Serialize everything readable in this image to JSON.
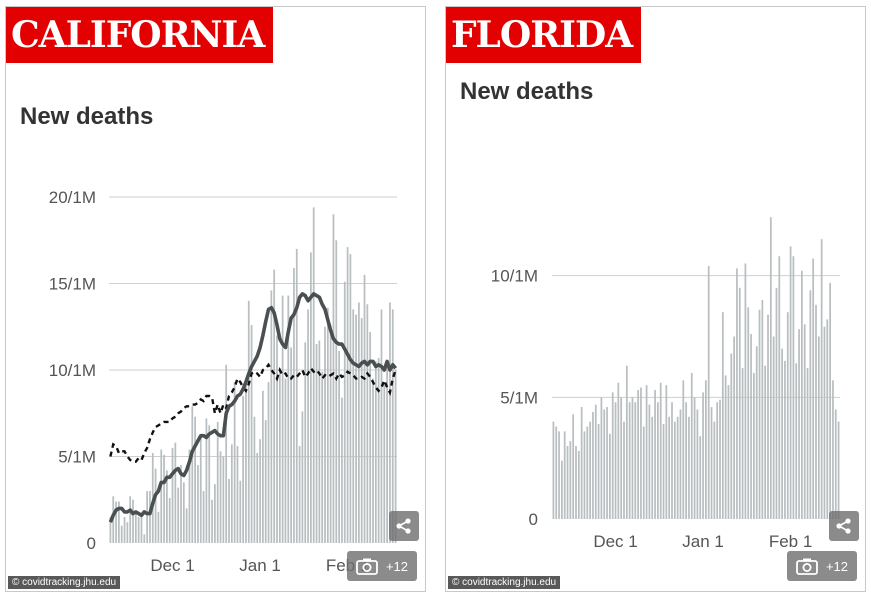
{
  "panels": [
    {
      "state_label": "CALIFORNIA",
      "title": "New deaths",
      "credit": "© covidtracking.jhu.edu",
      "gallery_count": "+12",
      "icons": {
        "share": "share-icon",
        "gallery": "camera-icon"
      },
      "chart_data": {
        "type": "bar",
        "ylim": [
          0,
          20
        ],
        "yticks": [
          {
            "v": 0,
            "label": "0"
          },
          {
            "v": 5,
            "label": "5/1M"
          },
          {
            "v": 10,
            "label": "10/1M"
          },
          {
            "v": 15,
            "label": "15/1M"
          },
          {
            "v": 20,
            "label": "20/1M"
          }
        ],
        "xticks": [
          {
            "day": 22,
            "label": "Dec 1"
          },
          {
            "day": 53,
            "label": "Jan 1"
          },
          {
            "day": 84,
            "label": "Feb 1"
          }
        ],
        "days": 102,
        "grid": true,
        "colors": {
          "bars": "#b9bfc1",
          "avg": "#4a4f52",
          "dashed": "#111111"
        },
        "bars": [
          1.5,
          2.7,
          2.4,
          2.4,
          1.0,
          1.5,
          1.2,
          2.7,
          2.5,
          1.8,
          1.5,
          1.5,
          0.5,
          3.0,
          3.0,
          5.2,
          4.3,
          1.8,
          5.4,
          5.1,
          4.2,
          2.6,
          5.5,
          5.8,
          3.2,
          4.5,
          3.5,
          2.0,
          5.4,
          7.9,
          7.3,
          4.5,
          6.1,
          3.0,
          7.2,
          6.8,
          2.5,
          3.4,
          7.0,
          5.3,
          5.0,
          10.3,
          3.7,
          5.7,
          9.3,
          5.6,
          3.6,
          8.5,
          9.5,
          14.0,
          12.6,
          7.3,
          5.2,
          6.0,
          8.8,
          7.1,
          9.3,
          14.6,
          15.8,
          12.0,
          10.1,
          14.3,
          9.5,
          14.3,
          11.3,
          15.9,
          17.0,
          5.6,
          7.6,
          11.6,
          13.5,
          16.8,
          19.4,
          11.5,
          11.7,
          9.9,
          12.5,
          13.6,
          12.6,
          19.0,
          17.5,
          11.1,
          8.4,
          15.1,
          17.1,
          16.7,
          13.5,
          13.2,
          13.9,
          13.0,
          15.5,
          13.8,
          12.2,
          9.5,
          10.5,
          10.7,
          13.5,
          9.3,
          10.2,
          13.9,
          13.5,
          10.0
        ],
        "avg": [
          1.2,
          1.6,
          1.9,
          2.0,
          2.0,
          1.8,
          1.8,
          1.9,
          1.7,
          1.8,
          1.7,
          1.6,
          1.8,
          1.7,
          1.7,
          2.3,
          2.8,
          3.0,
          3.5,
          3.5,
          3.8,
          3.8,
          4.0,
          4.2,
          4.3,
          4.0,
          3.9,
          4.2,
          4.7,
          5.3,
          5.6,
          5.9,
          6.2,
          6.2,
          6.1,
          6.3,
          6.4,
          6.5,
          6.3,
          6.2,
          6.2,
          7.5,
          7.9,
          8.0,
          8.2,
          8.5,
          8.6,
          8.9,
          9.3,
          9.8,
          10.2,
          10.5,
          10.8,
          11.3,
          12.0,
          12.8,
          13.5,
          13.6,
          13.3,
          12.6,
          11.8,
          11.5,
          11.3,
          12.2,
          13.0,
          13.2,
          13.6,
          14.2,
          14.4,
          14.3,
          14.0,
          14.2,
          14.4,
          14.3,
          14.2,
          13.8,
          13.5,
          12.9,
          12.3,
          11.8,
          11.6,
          11.5,
          11.5,
          11.2,
          10.9,
          10.6,
          10.4,
          10.3,
          10.2,
          10.4,
          10.5,
          10.3,
          10.5,
          10.5,
          10.2,
          10.3,
          10.2,
          10.0,
          10.5,
          10.0,
          10.3,
          10.1
        ],
        "dashed": [
          5.0,
          5.7,
          5.6,
          5.2,
          5.3,
          5.3,
          5.0,
          4.8,
          4.7,
          4.7,
          4.9,
          4.8,
          5.2,
          5.5,
          6.0,
          6.4,
          6.7,
          6.8,
          6.9,
          7.0,
          7.0,
          7.0,
          7.2,
          7.3,
          7.5,
          7.6,
          7.8,
          7.9,
          7.9,
          8.0,
          8.0,
          8.1,
          8.3,
          8.2,
          8.5,
          8.5,
          8.4,
          7.5,
          8.0,
          7.5,
          8.0,
          7.8,
          8.5,
          8.7,
          9.0,
          9.5,
          9.3,
          9.0,
          8.8,
          9.2,
          9.8,
          9.9,
          9.8,
          9.6,
          10.0,
          10.1,
          10.3,
          10.0,
          9.8,
          9.5,
          10.0,
          9.7,
          9.8,
          9.5,
          9.5,
          9.7,
          9.6,
          9.8,
          10.0,
          9.6,
          9.8,
          10.1,
          9.9,
          10.0,
          9.8,
          9.5,
          9.7,
          9.6,
          9.7,
          9.8,
          9.5,
          9.8,
          9.6,
          9.7,
          9.9,
          9.8,
          9.7,
          9.5,
          9.5,
          9.6,
          9.5,
          9.8,
          9.6,
          9.3,
          9.0,
          8.8,
          9.0,
          9.4,
          9.0,
          8.7,
          9.5,
          10.0
        ]
      }
    },
    {
      "state_label": "FLORIDA",
      "title": "New deaths",
      "credit": "© covidtracking.jhu.edu",
      "gallery_count": "+12",
      "icons": {
        "share": "share-icon",
        "gallery": "camera-icon"
      },
      "chart_data": {
        "type": "bar",
        "ylim": [
          0,
          12
        ],
        "yticks": [
          {
            "v": 0,
            "label": "0"
          },
          {
            "v": 5,
            "label": "5/1M"
          },
          {
            "v": 10,
            "label": "10/1M"
          }
        ],
        "xticks": [
          {
            "day": 22,
            "label": "Dec 1"
          },
          {
            "day": 53,
            "label": "Jan 1"
          },
          {
            "day": 84,
            "label": "Feb 1"
          }
        ],
        "days": 102,
        "grid": true,
        "colors": {
          "bars": "#b9bfc1",
          "avg": "#4a4f52",
          "dashed": "#111111"
        },
        "bars": [
          4.0,
          3.8,
          3.6,
          2.4,
          3.6,
          3.0,
          3.2,
          4.3,
          3.0,
          2.8,
          4.6,
          3.6,
          3.8,
          4.0,
          4.4,
          4.7,
          3.9,
          5.0,
          4.5,
          4.6,
          3.5,
          5.2,
          4.8,
          5.6,
          5.0,
          4.0,
          6.3,
          4.8,
          5.0,
          4.8,
          5.3,
          5.4,
          3.8,
          5.5,
          4.7,
          4.2,
          5.3,
          4.8,
          5.6,
          3.9,
          5.5,
          4.2,
          4.8,
          4.0,
          4.2,
          4.5,
          5.7,
          4.8,
          4.2,
          6.0,
          5.0,
          4.5,
          3.4,
          5.2,
          5.7,
          10.4,
          4.6,
          4.0,
          4.8,
          4.9,
          8.5,
          5.9,
          5.5,
          6.8,
          7.5,
          10.3,
          9.5,
          6.2,
          10.5,
          8.7,
          7.6,
          6.0,
          7.1,
          8.6,
          9.0,
          6.3,
          8.4,
          12.4,
          7.5,
          9.5,
          10.8,
          7.0,
          6.5,
          8.5,
          11.2,
          10.8,
          6.4,
          7.8,
          10.2,
          8.0,
          6.2,
          9.4,
          10.7,
          8.8,
          7.5,
          11.5,
          7.9,
          8.2,
          9.7,
          5.7,
          4.5,
          4.0
        ]
      }
    }
  ]
}
